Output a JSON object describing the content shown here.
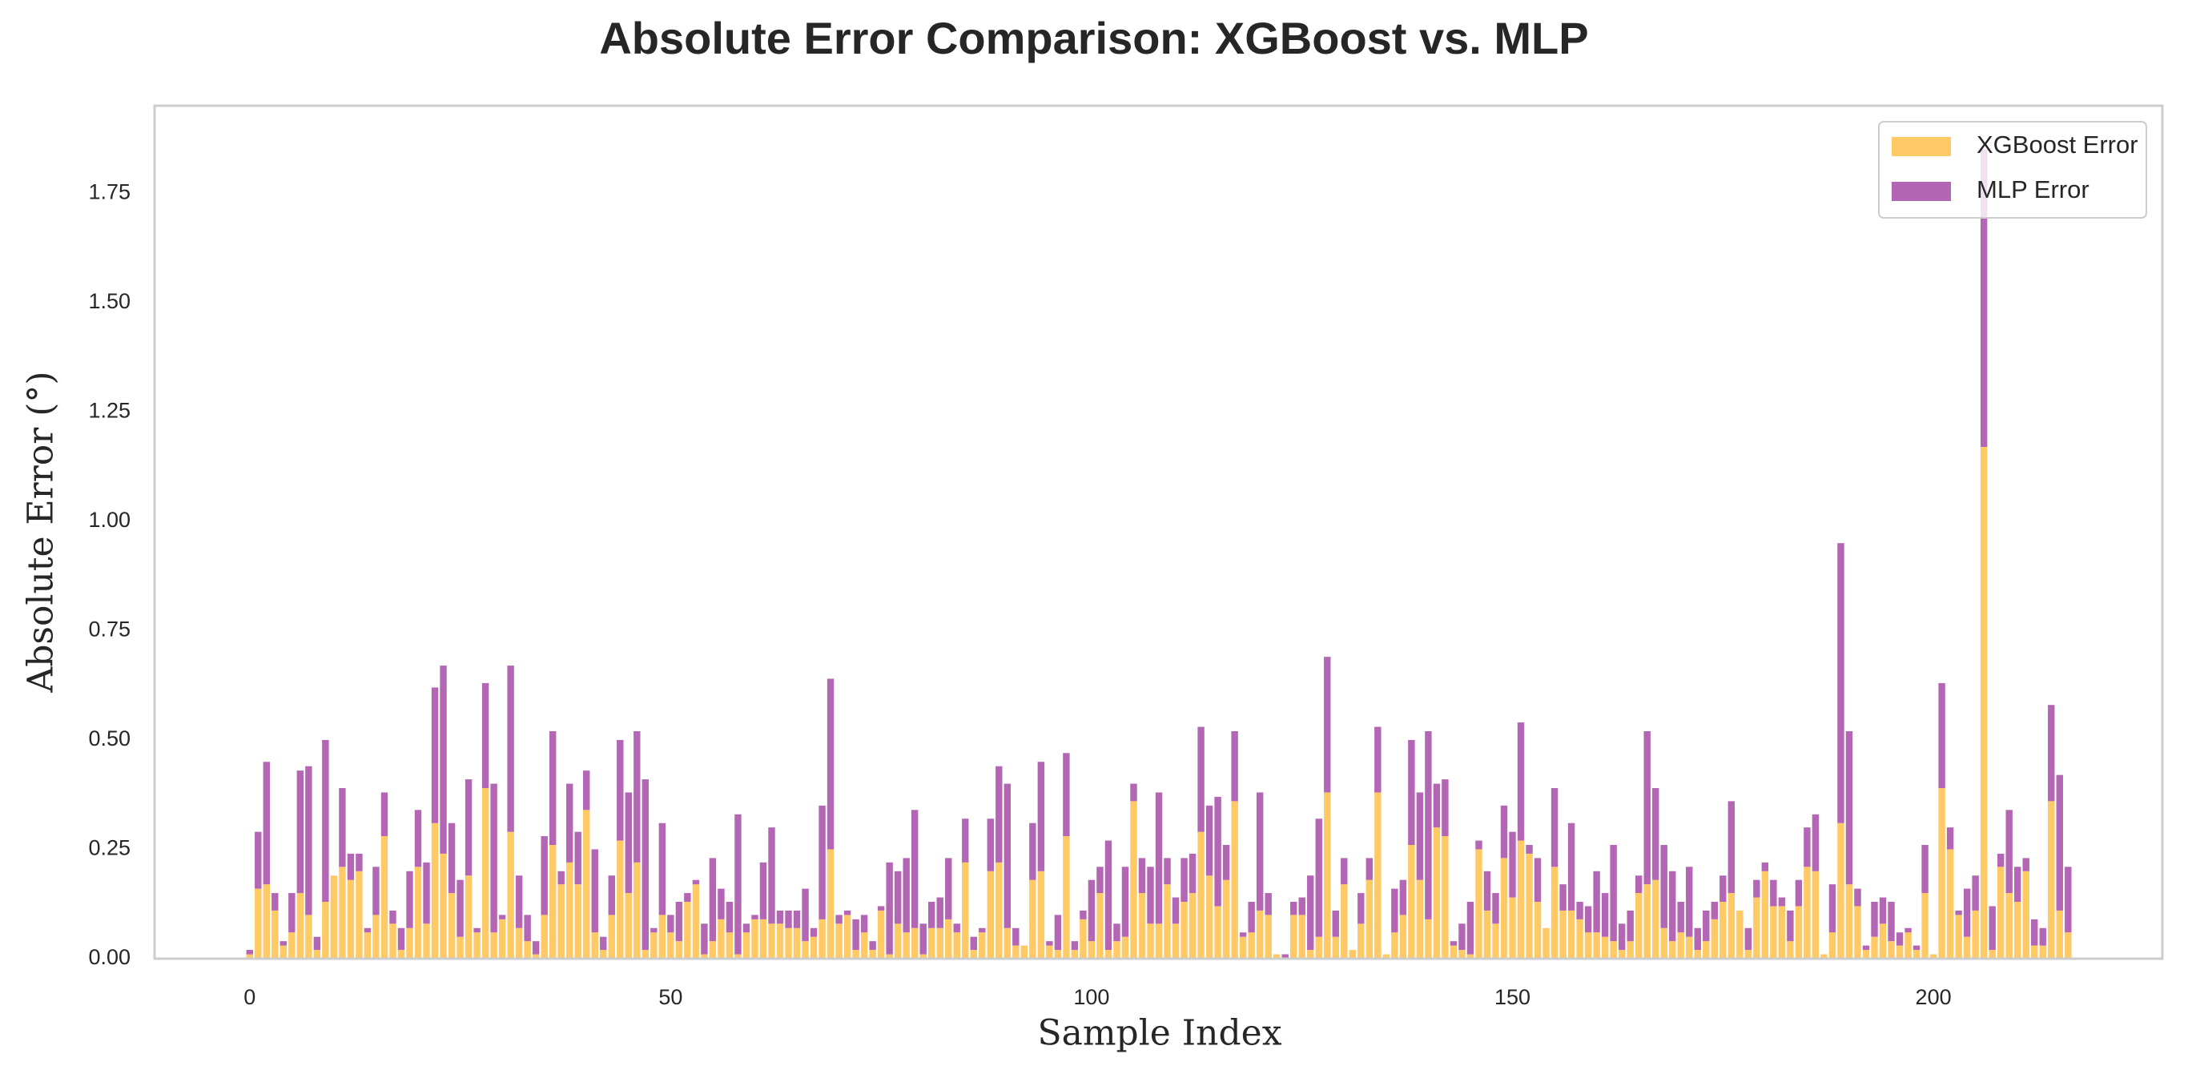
{
  "chart_data": {
    "type": "stacked_bar",
    "title": "Absolute Error Comparison: XGBoost vs. MLP",
    "xlabel": "Sample Index",
    "ylabel": "Absolute Error (°)",
    "x": [
      0,
      1,
      2,
      3,
      4,
      5,
      6,
      7,
      8,
      9,
      10,
      11,
      12,
      13,
      14,
      15,
      16,
      17,
      18,
      19,
      20,
      21,
      22,
      23,
      24,
      25,
      26,
      27,
      28,
      29,
      30,
      31,
      32,
      33,
      34,
      35,
      36,
      37,
      38,
      39,
      40,
      41,
      42,
      43,
      44,
      45,
      46,
      47,
      48,
      49,
      50,
      51,
      52,
      53,
      54,
      55,
      56,
      57,
      58,
      59,
      60,
      61,
      62,
      63,
      64,
      65,
      66,
      67,
      68,
      69,
      70,
      71,
      72,
      73,
      74,
      75,
      76,
      77,
      78,
      79,
      80,
      81,
      82,
      83,
      84,
      85,
      86,
      87,
      88,
      89,
      90,
      91,
      92,
      93,
      94,
      95,
      96,
      97,
      98,
      99,
      100,
      101,
      102,
      103,
      104,
      105,
      106,
      107,
      108,
      109,
      110,
      111,
      112,
      113,
      114,
      115,
      116,
      117,
      118,
      119,
      120,
      121,
      122,
      123,
      124,
      125,
      126,
      127,
      128,
      129,
      130,
      131,
      132,
      133,
      134,
      135,
      136,
      137,
      138,
      139,
      140,
      141,
      142,
      143,
      144,
      145,
      146,
      147,
      148,
      149,
      150,
      151,
      152,
      153,
      154,
      155,
      156,
      157,
      158,
      159,
      160,
      161,
      162,
      163,
      164,
      165,
      166,
      167,
      168,
      169,
      170,
      171,
      172,
      173,
      174,
      175,
      176,
      177,
      178,
      179,
      180,
      181,
      182,
      183,
      184,
      185,
      186,
      187,
      188,
      189,
      190,
      191,
      192,
      193,
      194,
      195,
      196,
      197,
      198,
      199,
      200,
      201,
      202,
      203,
      204,
      205,
      206,
      207,
      208,
      209,
      210,
      211,
      212,
      213,
      214,
      215,
      216
    ],
    "series": [
      {
        "name": "XGBoost Error",
        "color": "#ffc966",
        "values": [
          0.01,
          0.16,
          0.17,
          0.11,
          0.03,
          0.06,
          0.15,
          0.1,
          0.02,
          0.13,
          0.19,
          0.21,
          0.18,
          0.2,
          0.06,
          0.1,
          0.28,
          0.08,
          0.02,
          0.07,
          0.21,
          0.08,
          0.31,
          0.24,
          0.15,
          0.05,
          0.19,
          0.06,
          0.39,
          0.06,
          0.09,
          0.29,
          0.07,
          0.04,
          0.01,
          0.1,
          0.26,
          0.17,
          0.22,
          0.17,
          0.34,
          0.06,
          0.02,
          0.1,
          0.27,
          0.15,
          0.22,
          0.02,
          0.06,
          0.1,
          0.06,
          0.04,
          0.13,
          0.17,
          0.01,
          0.04,
          0.09,
          0.06,
          0.01,
          0.06,
          0.09,
          0.09,
          0.08,
          0.08,
          0.07,
          0.07,
          0.04,
          0.05,
          0.09,
          0.25,
          0.08,
          0.1,
          0.02,
          0.06,
          0.02,
          0.11,
          0.01,
          0.08,
          0.06,
          0.07,
          0.01,
          0.07,
          0.07,
          0.09,
          0.06,
          0.22,
          0.02,
          0.06,
          0.2,
          0.22,
          0.07,
          0.03,
          0.03,
          0.18,
          0.2,
          0.03,
          0.02,
          0.28,
          0.02,
          0.09,
          0.04,
          0.15,
          0.02,
          0.04,
          0.05,
          0.36,
          0.15,
          0.08,
          0.08,
          0.17,
          0.08,
          0.13,
          0.15,
          0.29,
          0.19,
          0.12,
          0.18,
          0.36,
          0.05,
          0.06,
          0.11,
          0.1,
          0.01,
          0.0,
          0.1,
          0.1,
          0.02,
          0.05,
          0.38,
          0.05,
          0.17,
          0.02,
          0.08,
          0.18,
          0.38,
          0.01,
          0.06,
          0.1,
          0.26,
          0.18,
          0.09,
          0.3,
          0.28,
          0.03,
          0.02,
          0.01,
          0.25,
          0.11,
          0.08,
          0.23,
          0.14,
          0.27,
          0.24,
          0.13,
          0.07,
          0.21,
          0.11,
          0.11,
          0.09,
          0.06,
          0.06,
          0.05,
          0.04,
          0.02,
          0.04,
          0.15,
          0.17,
          0.18,
          0.07,
          0.04,
          0.06,
          0.05,
          0.02,
          0.04,
          0.09,
          0.13,
          0.15,
          0.11,
          0.02,
          0.14,
          0.2,
          0.12,
          0.12,
          0.04,
          0.12,
          0.21,
          0.2,
          0.01,
          0.06,
          0.31,
          0.17,
          0.12,
          0.02,
          0.05,
          0.08,
          0.04,
          0.03,
          0.06,
          0.02,
          0.15,
          0.01,
          0.39,
          0.25,
          0.1,
          0.05,
          0.11,
          1.17,
          0.02,
          0.21,
          0.15,
          0.13,
          0.2,
          0.03,
          0.03,
          0.36,
          0.11,
          0.06
        ]
      },
      {
        "name": "MLP Error",
        "color": "#b366b3",
        "values": [
          0.01,
          0.13,
          0.28,
          0.04,
          0.01,
          0.09,
          0.28,
          0.34,
          0.03,
          0.37,
          0.0,
          0.18,
          0.06,
          0.04,
          0.01,
          0.11,
          0.1,
          0.03,
          0.05,
          0.13,
          0.13,
          0.14,
          0.31,
          0.43,
          0.16,
          0.13,
          0.22,
          0.01,
          0.24,
          0.34,
          0.01,
          0.38,
          0.12,
          0.06,
          0.03,
          0.18,
          0.26,
          0.03,
          0.18,
          0.12,
          0.09,
          0.19,
          0.03,
          0.09,
          0.23,
          0.23,
          0.3,
          0.39,
          0.01,
          0.21,
          0.04,
          0.09,
          0.02,
          0.01,
          0.07,
          0.19,
          0.07,
          0.07,
          0.32,
          0.02,
          0.01,
          0.13,
          0.22,
          0.03,
          0.04,
          0.04,
          0.12,
          0.02,
          0.26,
          0.39,
          0.02,
          0.01,
          0.07,
          0.04,
          0.02,
          0.01,
          0.21,
          0.12,
          0.17,
          0.27,
          0.07,
          0.06,
          0.07,
          0.14,
          0.02,
          0.1,
          0.03,
          0.01,
          0.12,
          0.22,
          0.33,
          0.04,
          0.0,
          0.13,
          0.25,
          0.01,
          0.08,
          0.19,
          0.02,
          0.02,
          0.14,
          0.06,
          0.25,
          0.04,
          0.16,
          0.04,
          0.08,
          0.13,
          0.3,
          0.06,
          0.06,
          0.1,
          0.09,
          0.24,
          0.16,
          0.25,
          0.08,
          0.16,
          0.01,
          0.07,
          0.27,
          0.05,
          0.0,
          0.01,
          0.03,
          0.04,
          0.17,
          0.27,
          0.31,
          0.06,
          0.06,
          0.0,
          0.07,
          0.05,
          0.15,
          0.0,
          0.1,
          0.08,
          0.24,
          0.2,
          0.43,
          0.1,
          0.13,
          0.01,
          0.06,
          0.12,
          0.02,
          0.09,
          0.07,
          0.12,
          0.15,
          0.27,
          0.02,
          0.1,
          0.0,
          0.18,
          0.06,
          0.2,
          0.04,
          0.06,
          0.14,
          0.1,
          0.22,
          0.06,
          0.07,
          0.04,
          0.35,
          0.21,
          0.19,
          0.16,
          0.07,
          0.16,
          0.05,
          0.07,
          0.04,
          0.06,
          0.21,
          0.0,
          0.05,
          0.04,
          0.02,
          0.06,
          0.02,
          0.07,
          0.06,
          0.09,
          0.13,
          0.0,
          0.11,
          0.64,
          0.35,
          0.04,
          0.01,
          0.08,
          0.06,
          0.09,
          0.03,
          0.01,
          0.01,
          0.11,
          0.0,
          0.24,
          0.05,
          0.01,
          0.11,
          0.08,
          0.68,
          0.1,
          0.03,
          0.19,
          0.08,
          0.03,
          0.06,
          0.04,
          0.22,
          0.31,
          0.15
        ]
      }
    ],
    "xlim": [
      -11.3,
      227.2
    ],
    "xticks": [
      0,
      50,
      100,
      150,
      200
    ],
    "ylim": [
      0,
      1.95
    ],
    "yticks": [
      {
        "value": 0,
        "label": "0.00"
      },
      0.25,
      {
        "value": 0.5,
        "label": "0.50"
      },
      0.75,
      {
        "value": 1,
        "label": "1.00"
      },
      1.25,
      {
        "value": 1.5,
        "label": "1.50"
      },
      1.75
    ],
    "grid": false,
    "legend": "upper right"
  }
}
